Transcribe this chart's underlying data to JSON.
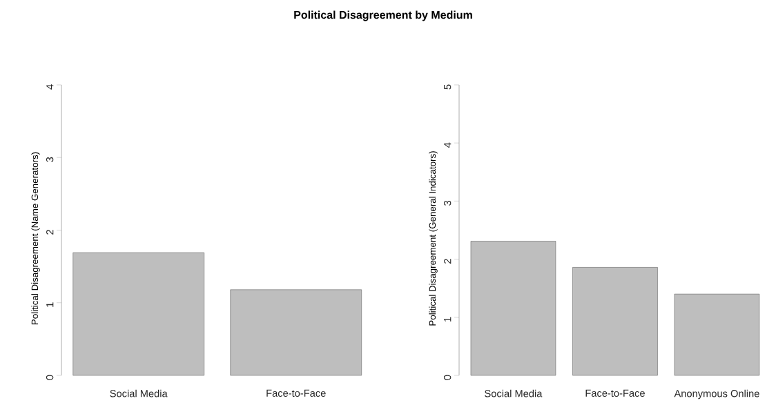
{
  "chart_data": [
    {
      "type": "bar",
      "title": "Political Disagreement by Medium",
      "ylabel": "Political Disagreement (Name Generators)",
      "categories": [
        "Social Media",
        "Face-to-Face"
      ],
      "values": [
        1.69,
        1.18
      ],
      "color": "#bebebe",
      "ylim": [
        0,
        4
      ],
      "yticks": [
        0,
        1,
        2,
        3,
        4
      ]
    },
    {
      "type": "bar",
      "ylabel": "Political Disagreement (General Indicators)",
      "categories": [
        "Social Media",
        "Face-to-Face",
        "Anonymous Online"
      ],
      "values": [
        2.31,
        1.86,
        1.4
      ],
      "color": "#bebebe",
      "ylim": [
        0,
        5
      ],
      "yticks": [
        0,
        1,
        2,
        3,
        4,
        5
      ]
    }
  ]
}
